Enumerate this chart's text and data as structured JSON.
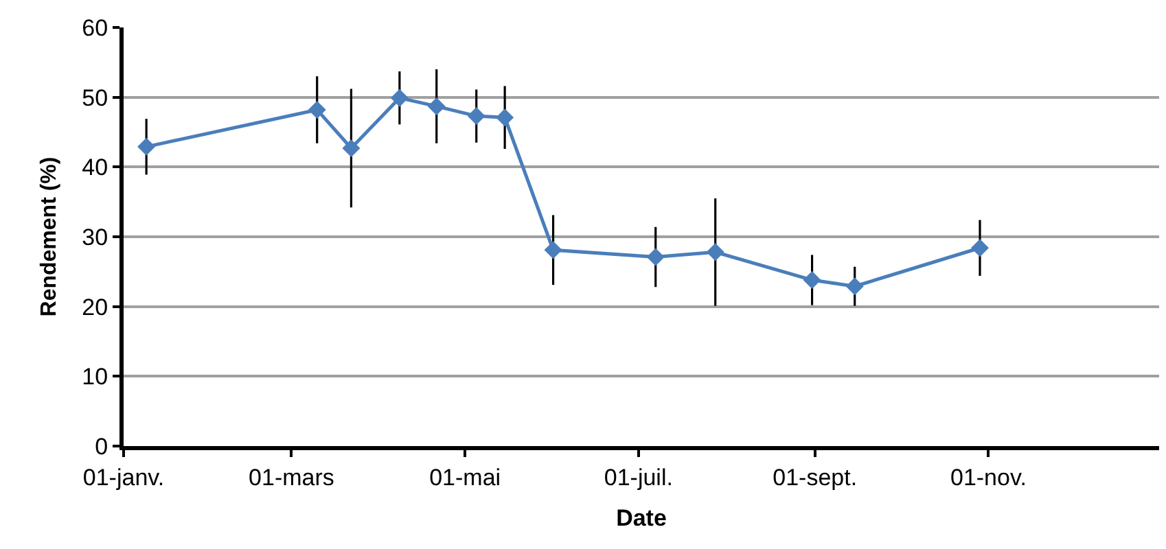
{
  "chart_data": {
    "type": "line",
    "xlabel": "Date",
    "ylabel": "Rendement (%)",
    "x": [
      "--01-09",
      "--03-10",
      "--03-22",
      "--04-08",
      "--04-21",
      "--05-05",
      "--05-15",
      "--06-01",
      "--07-07",
      "--07-28",
      "--08-31",
      "--09-15",
      "--10-29"
    ],
    "series": [
      {
        "color": "#4a7ebb",
        "values": [
          42.9,
          48.2,
          42.7,
          49.9,
          48.7,
          47.3,
          47.1,
          28.1,
          27.1,
          27.8,
          23.8,
          22.9,
          28.4
        ],
        "errors": [
          4,
          4.8,
          8.5,
          3.8,
          5.3,
          3.8,
          4.5,
          5,
          4.3,
          7.7,
          3.6,
          2.8,
          4
        ]
      }
    ],
    "xlim": [
      "--01-01",
      "--12-31"
    ],
    "xticks": [
      {
        "value": "--01-01",
        "label": "01-janv."
      },
      {
        "value": "--03-01",
        "label": "01-mars"
      },
      {
        "value": "--05-01",
        "label": "01-mai"
      },
      {
        "value": "--07-01",
        "label": "01-juil."
      },
      {
        "value": "--09-01",
        "label": "01-sept."
      },
      {
        "value": "--11-01",
        "label": "01-nov."
      }
    ],
    "ylim": [
      0,
      60
    ],
    "yticks": [
      0,
      10,
      20,
      30,
      40,
      50,
      60
    ],
    "grid": "y",
    "marker": "diamond",
    "line_style": "solid"
  }
}
